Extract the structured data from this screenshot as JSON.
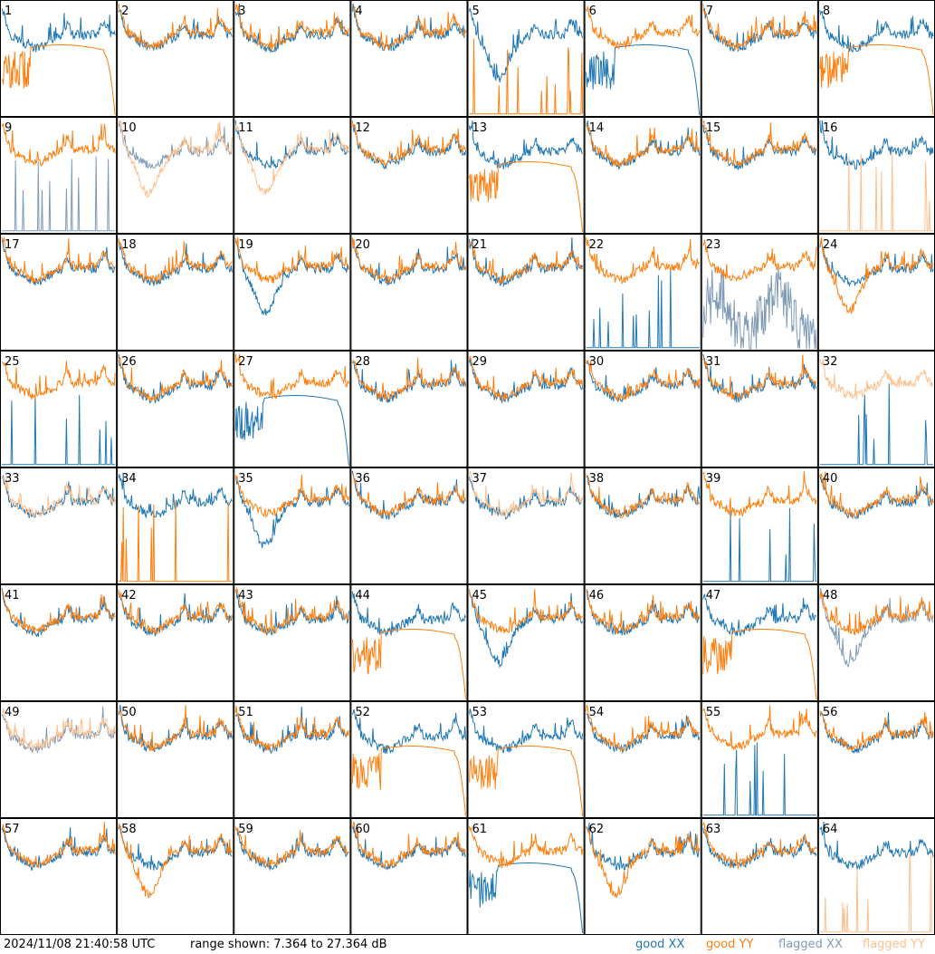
{
  "chart_data": {
    "type": "line",
    "grid": {
      "rows": 8,
      "cols": 8
    },
    "panels": [
      {
        "label": "1",
        "xx": "good",
        "yy": "good",
        "shape": {
          "yy": "rolloff"
        }
      },
      {
        "label": "2",
        "xx": "good",
        "yy": "good"
      },
      {
        "label": "3",
        "xx": "good",
        "yy": "good"
      },
      {
        "label": "4",
        "xx": "good",
        "yy": "good"
      },
      {
        "label": "5",
        "xx": "good",
        "yy": "good",
        "shape": {
          "xx": "dip",
          "yy": "spikes"
        }
      },
      {
        "label": "6",
        "xx": "good",
        "yy": "good",
        "shape": {
          "xx": "rolloff"
        }
      },
      {
        "label": "7",
        "xx": "good",
        "yy": "good"
      },
      {
        "label": "8",
        "xx": "good",
        "yy": "good",
        "shape": {
          "yy": "rolloff"
        }
      },
      {
        "label": "9",
        "xx": "flagged",
        "yy": "good",
        "shape": {
          "xx": "spikes"
        }
      },
      {
        "label": "10",
        "xx": "flagged",
        "yy": "flagged",
        "shape": {
          "yy": "dip"
        }
      },
      {
        "label": "11",
        "xx": "good",
        "yy": "flagged",
        "shape": {
          "yy": "dip"
        }
      },
      {
        "label": "12",
        "xx": "good",
        "yy": "good"
      },
      {
        "label": "13",
        "xx": "good",
        "yy": "good",
        "shape": {
          "yy": "rolloff"
        }
      },
      {
        "label": "14",
        "xx": "good",
        "yy": "good"
      },
      {
        "label": "15",
        "xx": "good",
        "yy": "good"
      },
      {
        "label": "16",
        "xx": "good",
        "yy": "flagged",
        "shape": {
          "yy": "spikes"
        }
      },
      {
        "label": "17",
        "xx": "good",
        "yy": "good"
      },
      {
        "label": "18",
        "xx": "good",
        "yy": "good"
      },
      {
        "label": "19",
        "xx": "good",
        "yy": "good",
        "shape": {
          "xx": "dip"
        }
      },
      {
        "label": "20",
        "xx": "good",
        "yy": "good"
      },
      {
        "label": "21",
        "xx": "good",
        "yy": "good"
      },
      {
        "label": "22",
        "xx": "good",
        "yy": "good",
        "shape": {
          "xx": "spikes"
        }
      },
      {
        "label": "23",
        "xx": "flagged",
        "yy": "good",
        "shape": {
          "xx": "noisy"
        }
      },
      {
        "label": "24",
        "xx": "good",
        "yy": "good",
        "shape": {
          "yy": "dip"
        }
      },
      {
        "label": "25",
        "xx": "good",
        "yy": "good",
        "shape": {
          "xx": "spikes"
        }
      },
      {
        "label": "26",
        "xx": "good",
        "yy": "good"
      },
      {
        "label": "27",
        "xx": "good",
        "yy": "good",
        "shape": {
          "xx": "rolloff"
        }
      },
      {
        "label": "28",
        "xx": "good",
        "yy": "good"
      },
      {
        "label": "29",
        "xx": "good",
        "yy": "good"
      },
      {
        "label": "30",
        "xx": "good",
        "yy": "good"
      },
      {
        "label": "31",
        "xx": "good",
        "yy": "good"
      },
      {
        "label": "32",
        "xx": "good",
        "yy": "flagged",
        "shape": {
          "xx": "spikes"
        }
      },
      {
        "label": "33",
        "xx": "good",
        "yy": "flagged"
      },
      {
        "label": "34",
        "xx": "good",
        "yy": "good",
        "shape": {
          "yy": "spikes"
        }
      },
      {
        "label": "35",
        "xx": "good",
        "yy": "good",
        "shape": {
          "xx": "dip"
        }
      },
      {
        "label": "36",
        "xx": "good",
        "yy": "good"
      },
      {
        "label": "37",
        "xx": "good",
        "yy": "flagged"
      },
      {
        "label": "38",
        "xx": "good",
        "yy": "good"
      },
      {
        "label": "39",
        "xx": "good",
        "yy": "good",
        "shape": {
          "xx": "spikes"
        }
      },
      {
        "label": "40",
        "xx": "good",
        "yy": "good"
      },
      {
        "label": "41",
        "xx": "good",
        "yy": "good"
      },
      {
        "label": "42",
        "xx": "good",
        "yy": "good"
      },
      {
        "label": "43",
        "xx": "good",
        "yy": "good"
      },
      {
        "label": "44",
        "xx": "good",
        "yy": "good",
        "shape": {
          "yy": "rolloff"
        }
      },
      {
        "label": "45",
        "xx": "good",
        "yy": "good",
        "shape": {
          "xx": "dip"
        }
      },
      {
        "label": "46",
        "xx": "good",
        "yy": "good"
      },
      {
        "label": "47",
        "xx": "good",
        "yy": "good",
        "shape": {
          "yy": "rolloff"
        }
      },
      {
        "label": "48",
        "xx": "flagged",
        "yy": "good",
        "shape": {
          "xx": "dip"
        }
      },
      {
        "label": "49",
        "xx": "flagged",
        "yy": "flagged"
      },
      {
        "label": "50",
        "xx": "good",
        "yy": "good"
      },
      {
        "label": "51",
        "xx": "good",
        "yy": "good"
      },
      {
        "label": "52",
        "xx": "good",
        "yy": "good",
        "shape": {
          "yy": "rolloff"
        }
      },
      {
        "label": "53",
        "xx": "good",
        "yy": "good",
        "shape": {
          "yy": "rolloff"
        }
      },
      {
        "label": "54",
        "xx": "good",
        "yy": "good"
      },
      {
        "label": "55",
        "xx": "good",
        "yy": "good",
        "shape": {
          "xx": "spikes"
        }
      },
      {
        "label": "56",
        "xx": "good",
        "yy": "good"
      },
      {
        "label": "57",
        "xx": "good",
        "yy": "good"
      },
      {
        "label": "58",
        "xx": "good",
        "yy": "good",
        "shape": {
          "yy": "dip"
        }
      },
      {
        "label": "59",
        "xx": "good",
        "yy": "good"
      },
      {
        "label": "60",
        "xx": "good",
        "yy": "good"
      },
      {
        "label": "61",
        "xx": "good",
        "yy": "good",
        "shape": {
          "xx": "rolloff"
        }
      },
      {
        "label": "62",
        "xx": "good",
        "yy": "good",
        "shape": {
          "yy": "dip"
        }
      },
      {
        "label": "63",
        "xx": "good",
        "yy": "good"
      },
      {
        "label": "64",
        "xx": "good",
        "yy": "flagged",
        "shape": {
          "yy": "spikes"
        }
      }
    ],
    "range_db": [
      7.364,
      27.364
    ],
    "legend": [
      {
        "name": "good XX",
        "color": "#1f77b4"
      },
      {
        "name": "good YY",
        "color": "#ff7f0e"
      },
      {
        "name": "flagged XX",
        "color": "#7f9bb8"
      },
      {
        "name": "flagged YY",
        "color": "#ffbf8c"
      }
    ]
  },
  "footer": {
    "timestamp": "2024/11/08 21:40:58 UTC",
    "range_text": "range shown: 7.364 to 27.364 dB",
    "legend": {
      "good_xx": "good XX",
      "good_yy": "good YY",
      "flagged_xx": "flagged XX",
      "flagged_yy": "flagged YY"
    }
  }
}
